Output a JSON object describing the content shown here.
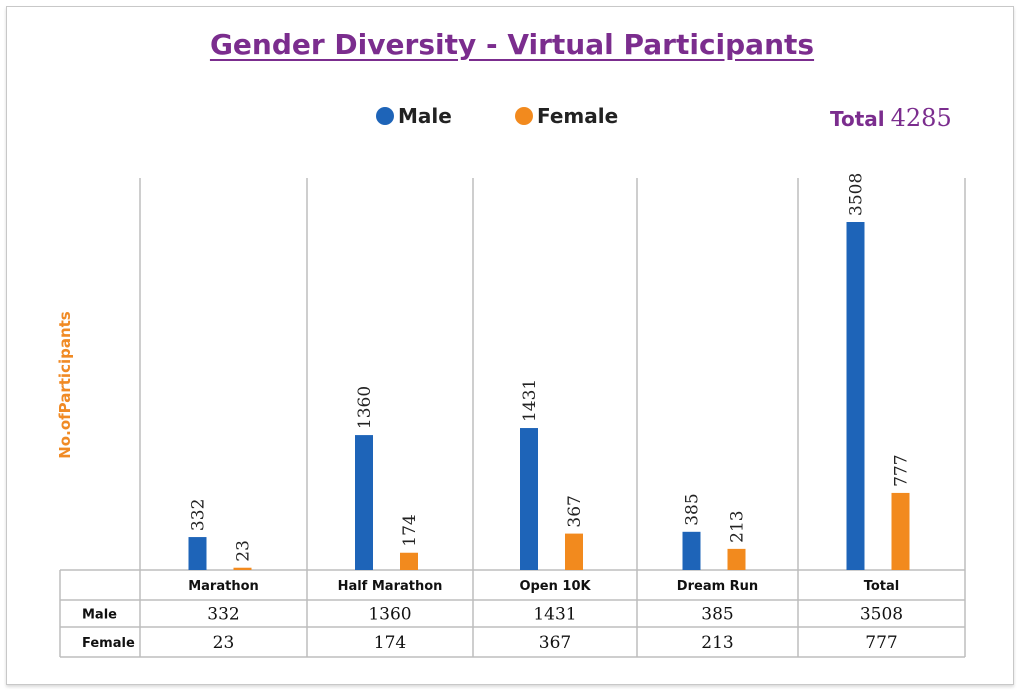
{
  "colors": {
    "title": "#7b2d8e",
    "male": "#1e64b8",
    "female": "#f28a1e",
    "ylabel": "#f08a24",
    "grid": "#bdbdbd",
    "total": "#7b2d8e"
  },
  "title": "Gender Diversity - Virtual Participants",
  "legend": {
    "male": "Male",
    "female": "Female"
  },
  "total": {
    "label": "Total",
    "value": "4285"
  },
  "chart_data": {
    "type": "bar",
    "title": "Gender Diversity - Virtual Participants",
    "ylabel": "No.ofParticipants",
    "xlabel": "",
    "categories": [
      "Marathon",
      "Half Marathon",
      "Open 10K",
      "Dream Run",
      "Total"
    ],
    "series": [
      {
        "name": "Male",
        "values": [
          332,
          1360,
          1431,
          385,
          3508
        ]
      },
      {
        "name": "Female",
        "values": [
          23,
          174,
          367,
          213,
          777
        ]
      }
    ],
    "ylim": [
      0,
      4000
    ],
    "grid": false,
    "legend_position": "top",
    "table": {
      "rows": [
        {
          "label": "Male",
          "values": [
            "332",
            "1360",
            "1431",
            "385",
            "3508"
          ]
        },
        {
          "label": "Female",
          "values": [
            "23",
            "174",
            "367",
            "213",
            "777"
          ]
        }
      ]
    }
  }
}
